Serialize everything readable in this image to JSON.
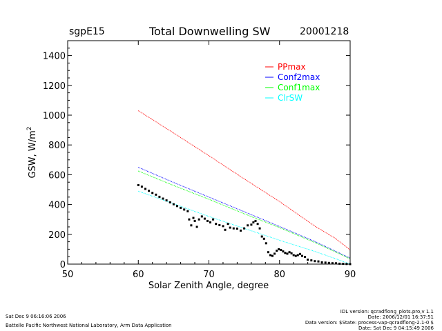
{
  "header": {
    "site": "sgpE15",
    "title": "Total Downwelling SW",
    "date": "20001218"
  },
  "footer": {
    "run_time": "Sat Dec  9 06:16:06 2006",
    "org": "Battelle Pacific Northwest National Laboratory, Arm Data Application",
    "idl_version": "IDL version: qcradflong_plots.pro,v 1.1",
    "idl_date": "Date: 2006/12/01 16:37:51",
    "data_version": "Data version: $State: process-vap-qcradflong-2.1-0 $",
    "data_date": "Date: Sat Dec  9 04:15:49 2006"
  },
  "colors": {
    "PPmax": "#ff0000",
    "Conf2max": "#0000ff",
    "Conf1max": "#00ff00",
    "ClrSW": "#00ffff",
    "measured": "#000000"
  },
  "chart_data": {
    "type": "scatter",
    "title": "Total Downwelling SW",
    "xlabel": "Solar Zenith Angle, degree",
    "ylabel": "GSW, W/m^2",
    "ylabel_base": "GSW, W/m",
    "ylabel_sup": "2",
    "xlim": [
      50,
      90
    ],
    "ylim": [
      0,
      1500
    ],
    "xticks": [
      50,
      60,
      70,
      80,
      90
    ],
    "yticks": [
      0,
      200,
      400,
      600,
      800,
      1000,
      1200,
      1400
    ],
    "legend_position": "top-right",
    "series": [
      {
        "name": "PPmax",
        "color": "#ff0000",
        "style": "line",
        "x": [
          60,
          65,
          70,
          75,
          80,
          85,
          88,
          90
        ],
        "y": [
          1030,
          880,
          728,
          572,
          420,
          255,
          170,
          95
        ]
      },
      {
        "name": "Conf2max",
        "color": "#0000ff",
        "style": "line",
        "x": [
          60,
          65,
          70,
          75,
          80,
          85,
          88,
          90
        ],
        "y": [
          650,
          548,
          450,
          352,
          253,
          152,
          85,
          40
        ]
      },
      {
        "name": "Conf1max",
        "color": "#00ff00",
        "style": "line",
        "x": [
          60,
          65,
          70,
          75,
          80,
          85,
          88,
          90
        ],
        "y": [
          625,
          528,
          435,
          338,
          245,
          145,
          80,
          35
        ]
      },
      {
        "name": "ClrSW",
        "color": "#00ffff",
        "style": "line",
        "x": [
          60,
          65,
          70,
          75,
          80,
          85,
          88,
          90
        ],
        "y": [
          490,
          405,
          320,
          240,
          160,
          85,
          35,
          0
        ]
      },
      {
        "color": "#000000",
        "style": "points",
        "x": [
          60,
          60.5,
          61,
          61.5,
          62,
          62.5,
          63,
          63.5,
          64,
          64.5,
          65,
          65.5,
          66,
          66.5,
          67,
          67.2,
          67.5,
          67.8,
          68,
          68.3,
          68.6,
          69,
          69.4,
          69.8,
          70.2,
          70.6,
          71,
          71.5,
          72,
          72.3,
          72.7,
          73,
          73.5,
          74,
          74.5,
          75,
          75.5,
          76,
          76.3,
          76.6,
          76.9,
          77.2,
          77.5,
          77.8,
          78.1,
          78.4,
          78.7,
          79,
          79.3,
          79.6,
          79.9,
          80.2,
          80.5,
          80.8,
          81.1,
          81.4,
          81.7,
          82,
          82.3,
          82.6,
          82.9,
          83.2,
          83.6,
          84,
          84.5,
          85,
          85.5,
          86,
          86.5,
          87,
          87.5,
          88,
          88.5,
          89,
          89.5,
          90
        ],
        "y": [
          530,
          520,
          505,
          492,
          478,
          466,
          452,
          440,
          428,
          415,
          402,
          390,
          378,
          366,
          355,
          300,
          260,
          310,
          290,
          250,
          300,
          320,
          305,
          290,
          280,
          300,
          270,
          262,
          255,
          230,
          270,
          245,
          240,
          238,
          225,
          240,
          260,
          265,
          280,
          290,
          270,
          240,
          185,
          170,
          140,
          80,
          60,
          55,
          70,
          90,
          100,
          95,
          85,
          75,
          70,
          80,
          72,
          60,
          55,
          60,
          68,
          55,
          48,
          30,
          25,
          20,
          18,
          12,
          10,
          8,
          6,
          5,
          3,
          2,
          1,
          0
        ]
      }
    ]
  }
}
